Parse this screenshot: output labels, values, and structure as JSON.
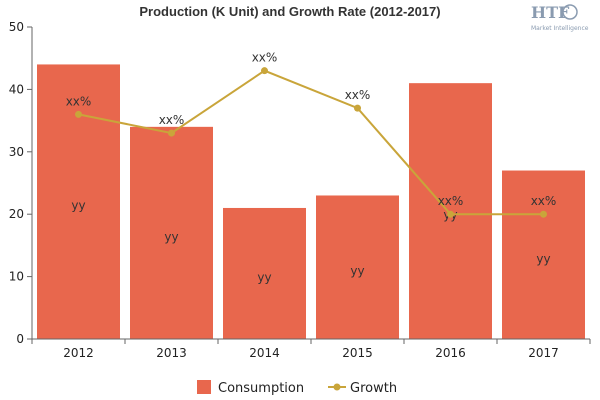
{
  "chart_data": {
    "type": "bar",
    "title": "Production (K Unit) and Growth Rate (2012-2017)",
    "categories": [
      "2012",
      "2013",
      "2014",
      "2015",
      "2016",
      "2017"
    ],
    "series": [
      {
        "name": "Consumption",
        "type": "bar",
        "values": [
          44,
          34,
          21,
          23,
          41,
          27
        ],
        "labels": [
          "yy",
          "yy",
          "yy",
          "yy",
          "yy",
          "yy"
        ],
        "color": "#e8674d"
      },
      {
        "name": "Growth",
        "type": "line",
        "values": [
          36,
          33,
          43,
          37,
          20,
          20
        ],
        "labels": [
          "xx%",
          "xx%",
          "xx%",
          "xx%",
          "xx%",
          "xx%"
        ],
        "color": "#c9a53a"
      }
    ],
    "yticks": [
      "0",
      "10",
      "20",
      "30",
      "40",
      "50"
    ],
    "ylim": [
      0,
      50
    ],
    "grid": false,
    "legend": "bottom"
  },
  "logo": {
    "text": "HTF",
    "subtext": "Market Intelligence"
  }
}
